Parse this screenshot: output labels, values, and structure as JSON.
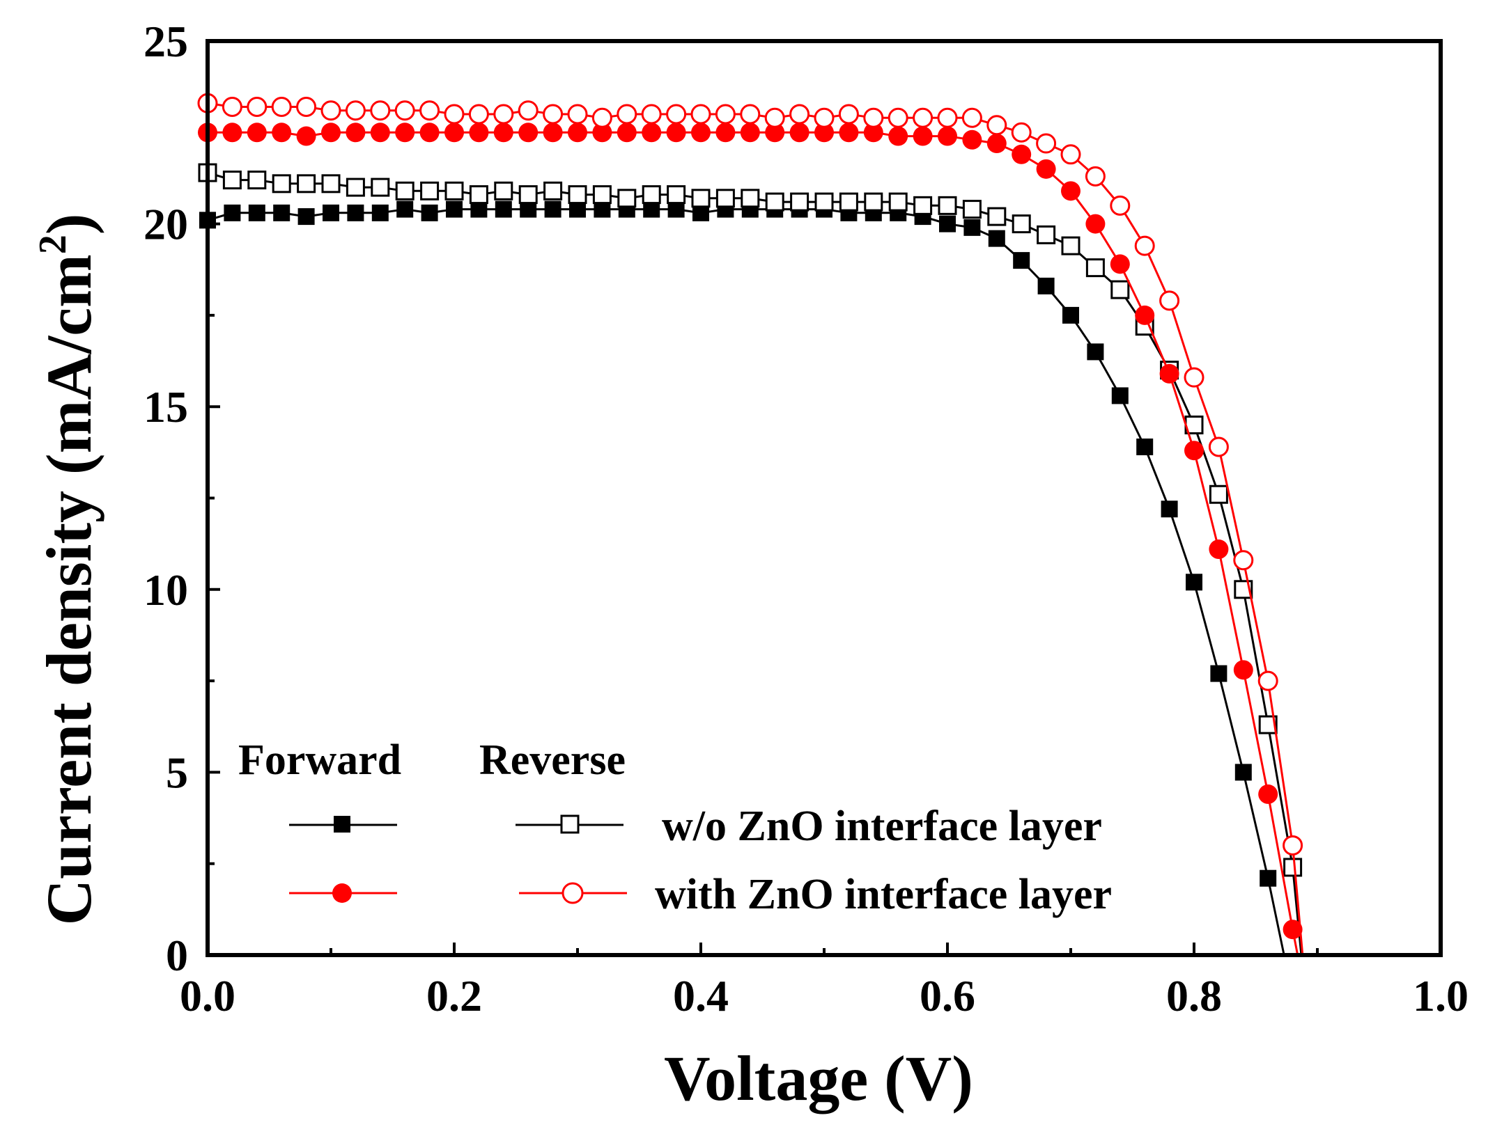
{
  "chart_data": {
    "type": "line",
    "title": "",
    "xlabel": "Voltage (V)",
    "ylabel": "Current density (mA/cm",
    "ylabel_sup": "2",
    "ylabel_end": ")",
    "xlim": [
      0.0,
      1.0
    ],
    "ylim": [
      0,
      25
    ],
    "x_ticks": [
      "0.0",
      "0.2",
      "0.4",
      "0.6",
      "0.8",
      "1.0"
    ],
    "y_ticks": [
      "0",
      "5",
      "10",
      "15",
      "20",
      "25"
    ],
    "x_tick_values": [
      0.0,
      0.2,
      0.4,
      0.6,
      0.8,
      1.0
    ],
    "y_tick_values": [
      0,
      5,
      10,
      15,
      20,
      25
    ],
    "x_minor_step": 0.1,
    "y_minor_step": 2.5,
    "legend_headers": {
      "forward": "Forward",
      "reverse": "Reverse"
    },
    "series": [
      {
        "name": "w/o ZnO interface layer (Forward)",
        "scan": "forward",
        "legend_label": "w/o ZnO interface layer",
        "color": "#000000",
        "marker": "square",
        "filled": true,
        "x": [
          0.0,
          0.02,
          0.04,
          0.06,
          0.08,
          0.1,
          0.12,
          0.14,
          0.16,
          0.18,
          0.2,
          0.22,
          0.24,
          0.26,
          0.28,
          0.3,
          0.32,
          0.34,
          0.36,
          0.38,
          0.4,
          0.42,
          0.44,
          0.46,
          0.48,
          0.5,
          0.52,
          0.54,
          0.56,
          0.58,
          0.6,
          0.62,
          0.64,
          0.66,
          0.68,
          0.7,
          0.72,
          0.74,
          0.76,
          0.78,
          0.8,
          0.82,
          0.84,
          0.86
        ],
        "y": [
          20.1,
          20.3,
          20.3,
          20.3,
          20.2,
          20.3,
          20.3,
          20.3,
          20.4,
          20.3,
          20.4,
          20.4,
          20.4,
          20.4,
          20.4,
          20.4,
          20.4,
          20.4,
          20.4,
          20.4,
          20.3,
          20.4,
          20.4,
          20.4,
          20.4,
          20.4,
          20.3,
          20.3,
          20.3,
          20.2,
          20.0,
          19.9,
          19.6,
          19.0,
          18.3,
          17.5,
          16.5,
          15.3,
          13.9,
          12.2,
          10.2,
          7.7,
          5.0,
          2.1
        ],
        "curve_end": [
          0.873,
          0.0
        ]
      },
      {
        "name": "w/o ZnO interface layer (Reverse)",
        "scan": "reverse",
        "legend_label": "w/o ZnO interface layer",
        "color": "#000000",
        "marker": "square",
        "filled": false,
        "x": [
          0.0,
          0.02,
          0.04,
          0.06,
          0.08,
          0.1,
          0.12,
          0.14,
          0.16,
          0.18,
          0.2,
          0.22,
          0.24,
          0.26,
          0.28,
          0.3,
          0.32,
          0.34,
          0.36,
          0.38,
          0.4,
          0.42,
          0.44,
          0.46,
          0.48,
          0.5,
          0.52,
          0.54,
          0.56,
          0.58,
          0.6,
          0.62,
          0.64,
          0.66,
          0.68,
          0.7,
          0.72,
          0.74,
          0.76,
          0.78,
          0.8,
          0.82,
          0.84,
          0.86,
          0.88
        ],
        "y": [
          21.4,
          21.2,
          21.2,
          21.1,
          21.1,
          21.1,
          21.0,
          21.0,
          20.9,
          20.9,
          20.9,
          20.8,
          20.9,
          20.8,
          20.9,
          20.8,
          20.8,
          20.7,
          20.8,
          20.8,
          20.7,
          20.7,
          20.7,
          20.6,
          20.6,
          20.6,
          20.6,
          20.6,
          20.6,
          20.5,
          20.5,
          20.4,
          20.2,
          20.0,
          19.7,
          19.4,
          18.8,
          18.2,
          17.2,
          16.0,
          14.5,
          12.6,
          10.0,
          6.3,
          2.4
        ],
        "curve_end": [
          0.887,
          0.0
        ]
      },
      {
        "name": "with ZnO interface layer (Forward)",
        "scan": "forward",
        "legend_label": "with ZnO interface layer",
        "color": "#ff0000",
        "marker": "circle",
        "filled": true,
        "x": [
          0.0,
          0.02,
          0.04,
          0.06,
          0.08,
          0.1,
          0.12,
          0.14,
          0.16,
          0.18,
          0.2,
          0.22,
          0.24,
          0.26,
          0.28,
          0.3,
          0.32,
          0.34,
          0.36,
          0.38,
          0.4,
          0.42,
          0.44,
          0.46,
          0.48,
          0.5,
          0.52,
          0.54,
          0.56,
          0.58,
          0.6,
          0.62,
          0.64,
          0.66,
          0.68,
          0.7,
          0.72,
          0.74,
          0.76,
          0.78,
          0.8,
          0.82,
          0.84,
          0.86,
          0.88
        ],
        "y": [
          22.5,
          22.5,
          22.5,
          22.5,
          22.4,
          22.5,
          22.5,
          22.5,
          22.5,
          22.5,
          22.5,
          22.5,
          22.5,
          22.5,
          22.5,
          22.5,
          22.5,
          22.5,
          22.5,
          22.5,
          22.5,
          22.5,
          22.5,
          22.5,
          22.5,
          22.5,
          22.5,
          22.5,
          22.4,
          22.4,
          22.4,
          22.3,
          22.2,
          21.9,
          21.5,
          20.9,
          20.0,
          18.9,
          17.5,
          15.9,
          13.8,
          11.1,
          7.8,
          4.4,
          0.7
        ],
        "curve_end": [
          0.884,
          0.0
        ]
      },
      {
        "name": "with ZnO interface layer (Reverse)",
        "scan": "reverse",
        "legend_label": "with ZnO interface layer",
        "color": "#ff0000",
        "marker": "circle",
        "filled": false,
        "x": [
          0.0,
          0.02,
          0.04,
          0.06,
          0.08,
          0.1,
          0.12,
          0.14,
          0.16,
          0.18,
          0.2,
          0.22,
          0.24,
          0.26,
          0.28,
          0.3,
          0.32,
          0.34,
          0.36,
          0.38,
          0.4,
          0.42,
          0.44,
          0.46,
          0.48,
          0.5,
          0.52,
          0.54,
          0.56,
          0.58,
          0.6,
          0.62,
          0.64,
          0.66,
          0.68,
          0.7,
          0.72,
          0.74,
          0.76,
          0.78,
          0.8,
          0.82,
          0.84,
          0.86,
          0.88
        ],
        "y": [
          23.3,
          23.2,
          23.2,
          23.2,
          23.2,
          23.1,
          23.1,
          23.1,
          23.1,
          23.1,
          23.0,
          23.0,
          23.0,
          23.1,
          23.0,
          23.0,
          22.9,
          23.0,
          23.0,
          23.0,
          23.0,
          23.0,
          23.0,
          22.9,
          23.0,
          22.9,
          23.0,
          22.9,
          22.9,
          22.9,
          22.9,
          22.9,
          22.7,
          22.5,
          22.2,
          21.9,
          21.3,
          20.5,
          19.4,
          17.9,
          15.8,
          13.9,
          10.8,
          7.5,
          3.0
        ],
        "curve_end": [
          0.888,
          0.0
        ]
      }
    ],
    "legend": {
      "forward_header": "Forward",
      "reverse_header": "Reverse",
      "row1_label": "w/o ZnO interface layer",
      "row2_label": "with ZnO interface layer"
    }
  }
}
